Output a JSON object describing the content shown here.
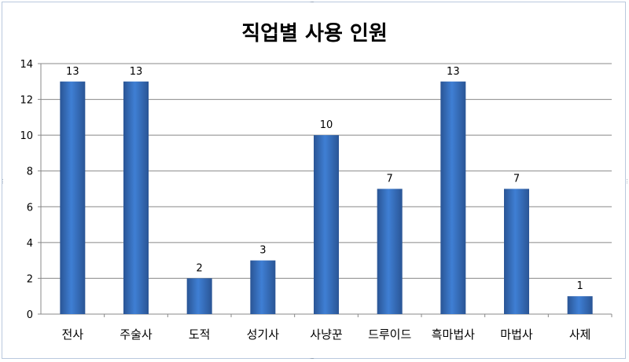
{
  "chart_data": {
    "type": "bar",
    "title": "직업별 사용 인원",
    "categories": [
      "전사",
      "주술사",
      "도적",
      "성기사",
      "사냥꾼",
      "드루이드",
      "흑마법사",
      "마법사",
      "사제"
    ],
    "series": [
      {
        "values": [
          13,
          13,
          2,
          3,
          10,
          7,
          13,
          7,
          1
        ]
      }
    ],
    "xlabel": "",
    "ylabel": "",
    "ylim": [
      0,
      14
    ],
    "yticks": [
      0,
      2,
      4,
      6,
      8,
      10,
      12,
      14
    ],
    "grid": true,
    "legend": "none",
    "data_labels": true,
    "bar_color": "#3a6cb8",
    "bar_color_light": "#3f7fd4",
    "bar_color_dark": "#2a5595",
    "grid_color": "#888888"
  }
}
